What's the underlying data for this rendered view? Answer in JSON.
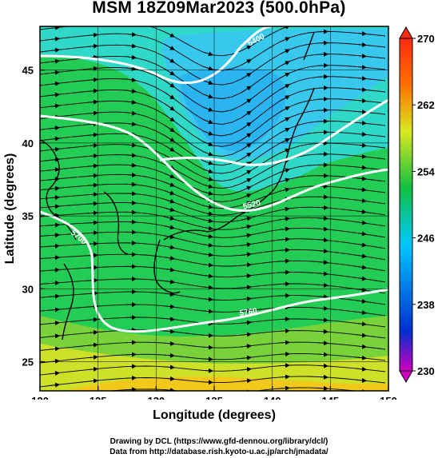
{
  "title": "MSM 18Z09Mar2023 (500.0hPa)",
  "map": {
    "type": "temperature field with streamlines and height contours",
    "lon_range": [
      120,
      150
    ],
    "lat_range": [
      23,
      48
    ],
    "x_ticks": [
      "120",
      "125",
      "130",
      "135",
      "140",
      "145",
      "150"
    ],
    "y_ticks": [
      "25",
      "30",
      "35",
      "40",
      "45"
    ],
    "xlabel": "Longitude (degrees)",
    "ylabel": "Latitude  (degrees)",
    "contour_labels": [
      "5400",
      "5520",
      "5760",
      "5700"
    ],
    "grid": true
  },
  "colorbar": {
    "ticks": [
      "270",
      "262",
      "254",
      "246",
      "238",
      "230"
    ],
    "range": [
      230,
      270
    ],
    "colors": [
      "#d000c0",
      "#0030d0",
      "#00c8ff",
      "#10c040",
      "#d8e820",
      "#ff7000",
      "#ff2a10"
    ]
  },
  "credits": {
    "line1": "Drawing by DCL (https://www.gfd-dennou.org/library/dcl/)",
    "line2": "Data from http://database.rish.kyoto-u.ac.jp/arch/jmadata/"
  }
}
